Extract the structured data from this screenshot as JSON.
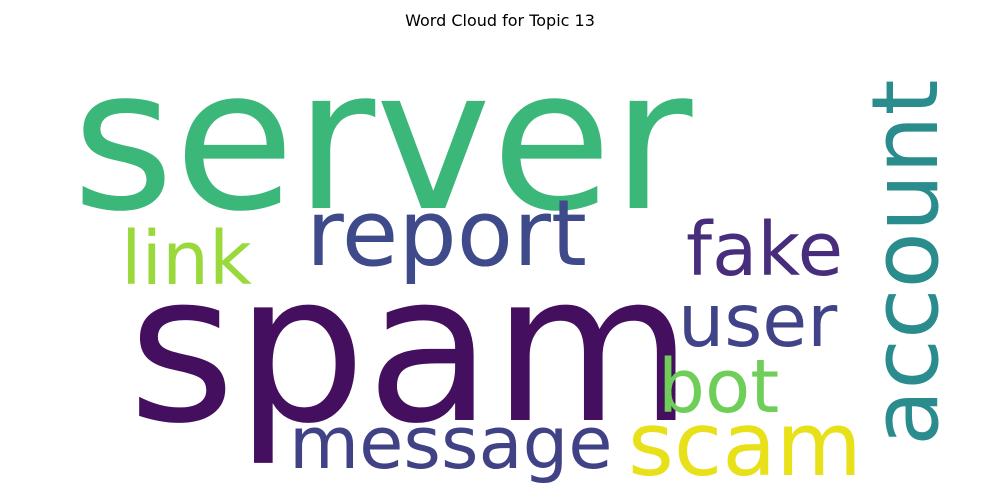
{
  "title": "Word Cloud for Topic 13",
  "words": [
    {
      "text": "server",
      "color": "#3bb77a",
      "orientation": "horizontal"
    },
    {
      "text": "spam",
      "color": "#440f5f",
      "orientation": "horizontal"
    },
    {
      "text": "report",
      "color": "#3f4a8a",
      "orientation": "horizontal"
    },
    {
      "text": "account",
      "color": "#2a8c8c",
      "orientation": "vertical"
    },
    {
      "text": "link",
      "color": "#9ad93c",
      "orientation": "horizontal"
    },
    {
      "text": "fake",
      "color": "#472d7b",
      "orientation": "horizontal"
    },
    {
      "text": "user",
      "color": "#404387",
      "orientation": "horizontal"
    },
    {
      "text": "bot",
      "color": "#6ece58",
      "orientation": "horizontal"
    },
    {
      "text": "message",
      "color": "#414286",
      "orientation": "horizontal"
    },
    {
      "text": "scam",
      "color": "#e8e019",
      "orientation": "horizontal"
    }
  ]
}
